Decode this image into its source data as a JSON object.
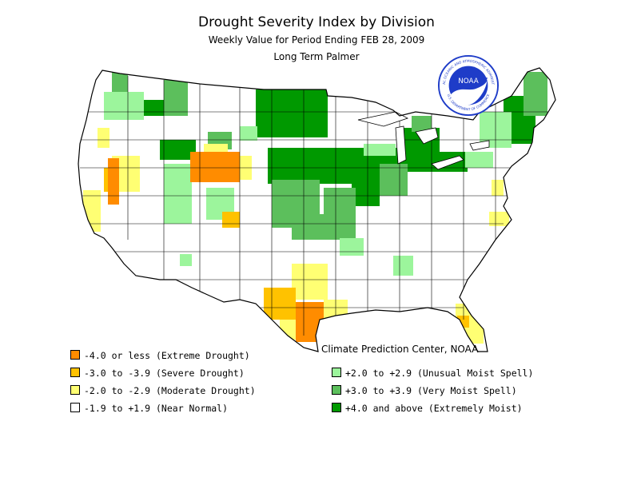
{
  "title": "Drought Severity Index by Division",
  "subtitle": "Weekly Value for Period Ending FEB 28, 2009",
  "subtitle2": "Long Term Palmer",
  "credit": "Climate Prediction Center, NOAA",
  "logo": {
    "center_text": "NOAA",
    "ring_text": "NATIONAL OCEANIC AND ATMOSPHERIC ADMINISTRATION",
    "ring_text_bottom": "U.S. DEPARTMENT OF COMMERCE"
  },
  "legend_left": [
    {
      "label": "-4.0 or less (Extreme Drought)",
      "color": "#ff8c00"
    },
    {
      "label": "-3.0 to -3.9 (Severe Drought)",
      "color": "#ffc200"
    },
    {
      "label": "-2.0 to -2.9 (Moderate Drought)",
      "color": "#ffff73"
    },
    {
      "label": "-1.9 to +1.9 (Near Normal)",
      "color": "#ffffff"
    }
  ],
  "legend_right": [
    {
      "label": "+2.0 to +2.9 (Unusual Moist Spell)",
      "color": "#9cf59c"
    },
    {
      "label": "+3.0 to +3.9 (Very Moist Spell)",
      "color": "#5cbf5c"
    },
    {
      "label": "+4.0 and above (Extremely Moist)",
      "color": "#009900"
    }
  ],
  "colors": {
    "extreme_drought": "#ff8c00",
    "severe_drought": "#ffc200",
    "moderate_drought": "#ffff73",
    "near_normal": "#ffffff",
    "unusual_moist": "#9cf59c",
    "very_moist": "#5cbf5c",
    "extremely_moist": "#009900",
    "logo_blue": "#1e3cc8"
  }
}
